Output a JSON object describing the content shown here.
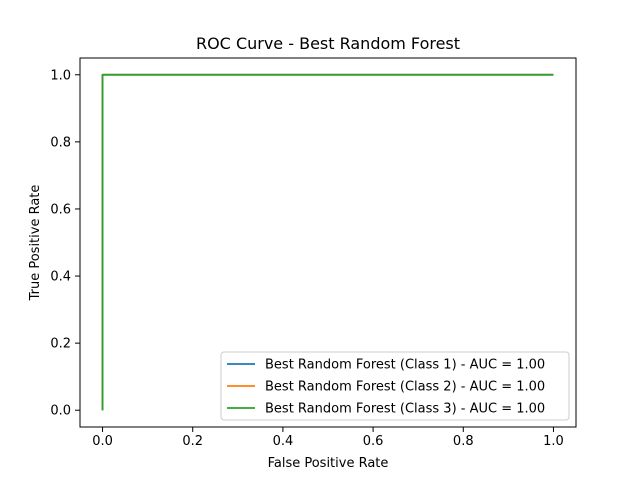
{
  "chart_data": {
    "type": "line",
    "title": "ROC Curve - Best Random Forest",
    "xlabel": "False Positive Rate",
    "ylabel": "True Positive Rate",
    "xlim": [
      -0.05,
      1.05
    ],
    "ylim": [
      -0.05,
      1.05
    ],
    "xticks": [
      0.0,
      0.2,
      0.4,
      0.6,
      0.8,
      1.0
    ],
    "yticks": [
      0.0,
      0.2,
      0.4,
      0.6,
      0.8,
      1.0
    ],
    "xtick_labels": [
      "0.0",
      "0.2",
      "0.4",
      "0.6",
      "0.8",
      "1.0"
    ],
    "ytick_labels": [
      "0.0",
      "0.2",
      "0.4",
      "0.6",
      "0.8",
      "1.0"
    ],
    "grid": false,
    "legend_position": "lower-right",
    "series": [
      {
        "name": "Best Random Forest (Class 1) - AUC = 1.00",
        "color": "#1f77b4",
        "x": [
          0.0,
          0.0,
          1.0
        ],
        "y": [
          0.0,
          1.0,
          1.0
        ]
      },
      {
        "name": "Best Random Forest (Class 2) - AUC = 1.00",
        "color": "#ff7f0e",
        "x": [
          0.0,
          0.0,
          1.0
        ],
        "y": [
          0.0,
          1.0,
          1.0
        ]
      },
      {
        "name": "Best Random Forest (Class 3) - AUC = 1.00",
        "color": "#2ca02c",
        "x": [
          0.0,
          0.0,
          1.0
        ],
        "y": [
          0.0,
          1.0,
          1.0
        ]
      }
    ]
  }
}
